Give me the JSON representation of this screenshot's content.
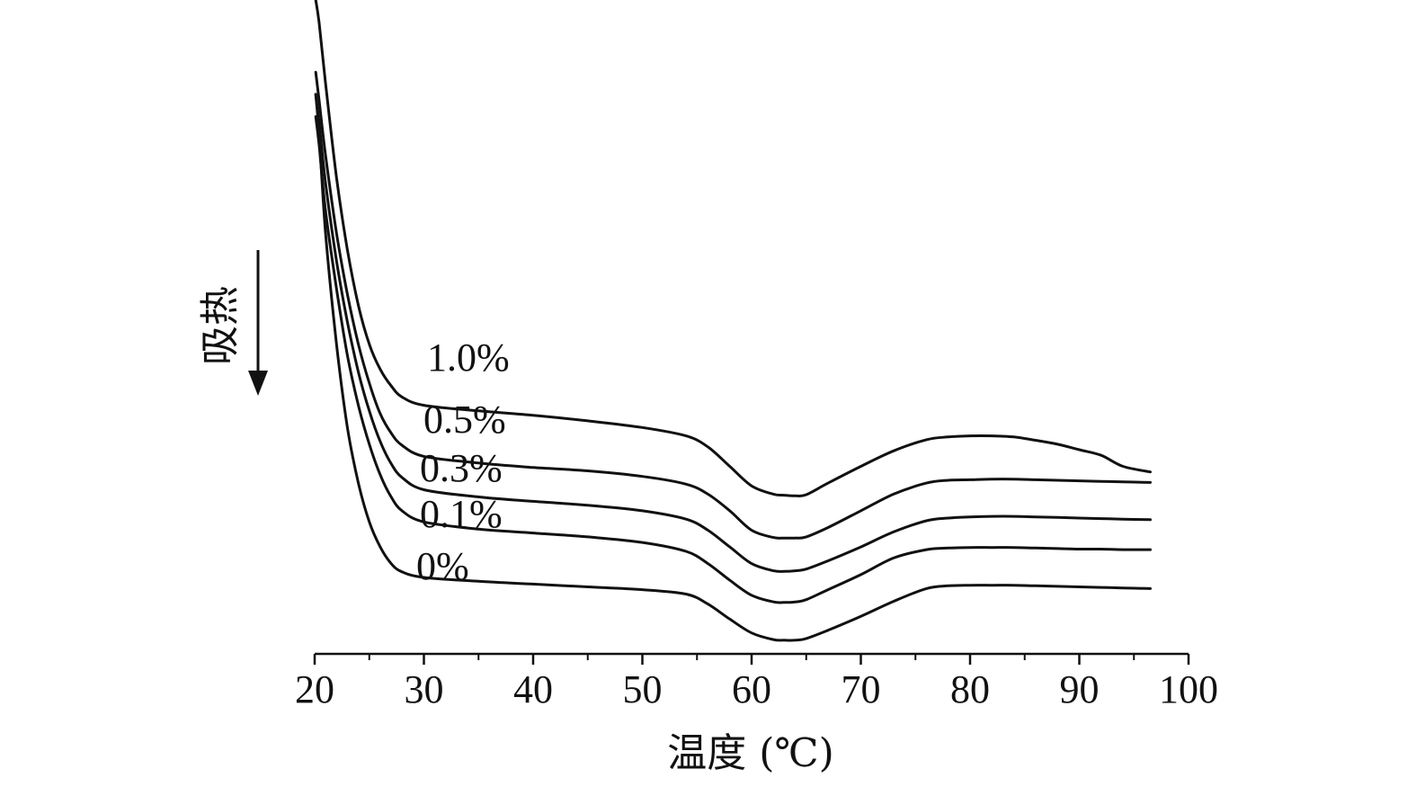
{
  "chart_data": {
    "type": "line",
    "title": "",
    "xlabel": "温度 (℃)",
    "ylabel": "吸热",
    "xlim": [
      20,
      100
    ],
    "x_ticks": [
      20,
      30,
      40,
      50,
      60,
      70,
      80,
      90,
      100
    ],
    "y_ticks": [],
    "grid": false,
    "legend": "none",
    "y_axis_shown": false,
    "arrow_direction": "down",
    "series": [
      {
        "name": "1.0%",
        "x": [
          20.1,
          20.4,
          21,
          22,
          23,
          24,
          25,
          26,
          27,
          28,
          30,
          35,
          40,
          45,
          50,
          54,
          56,
          58,
          60,
          62,
          63,
          64,
          65,
          67,
          70,
          73,
          76,
          78,
          80,
          82,
          84,
          86,
          88,
          90,
          92,
          94,
          96.5
        ],
        "y": [
          10.0,
          9.6,
          8.5,
          6.8,
          5.5,
          4.5,
          3.8,
          3.35,
          3.05,
          2.85,
          2.7,
          2.6,
          2.52,
          2.42,
          2.3,
          2.15,
          1.95,
          1.6,
          1.25,
          1.1,
          1.08,
          1.07,
          1.09,
          1.3,
          1.6,
          1.88,
          2.08,
          2.13,
          2.15,
          2.15,
          2.13,
          2.07,
          2.0,
          1.9,
          1.8,
          1.6,
          1.5
        ]
      },
      {
        "name": "0.5%",
        "x": [
          20.1,
          20.4,
          21,
          22,
          23,
          24,
          25,
          26,
          27,
          28,
          30,
          35,
          40,
          45,
          50,
          54,
          56,
          58,
          60,
          62,
          63,
          64,
          65,
          67,
          70,
          73,
          76,
          78,
          80,
          82,
          84,
          86,
          88,
          90,
          92,
          94,
          96.5
        ],
        "y": [
          8.7,
          8.2,
          7.2,
          5.8,
          4.7,
          3.8,
          3.1,
          2.55,
          2.2,
          1.98,
          1.78,
          1.66,
          1.58,
          1.52,
          1.42,
          1.28,
          1.1,
          0.8,
          0.45,
          0.32,
          0.31,
          0.31,
          0.33,
          0.5,
          0.8,
          1.1,
          1.3,
          1.35,
          1.36,
          1.37,
          1.37,
          1.36,
          1.35,
          1.34,
          1.33,
          1.32,
          1.31
        ]
      },
      {
        "name": "0.3%",
        "x": [
          20.1,
          20.4,
          21,
          22,
          23,
          24,
          25,
          26,
          27,
          28,
          30,
          35,
          40,
          45,
          50,
          54,
          56,
          58,
          60,
          62,
          63,
          64,
          65,
          67,
          70,
          73,
          76,
          78,
          80,
          82,
          84,
          86,
          88,
          90,
          92,
          94,
          96.5
        ],
        "y": [
          8.3,
          7.8,
          6.7,
          5.3,
          4.2,
          3.3,
          2.6,
          2.05,
          1.65,
          1.4,
          1.18,
          1.05,
          0.97,
          0.9,
          0.8,
          0.65,
          0.45,
          0.15,
          -0.15,
          -0.28,
          -0.29,
          -0.28,
          -0.25,
          -0.1,
          0.15,
          0.42,
          0.62,
          0.67,
          0.69,
          0.7,
          0.7,
          0.69,
          0.68,
          0.67,
          0.66,
          0.65,
          0.64
        ]
      },
      {
        "name": "0.1%",
        "x": [
          20.1,
          20.4,
          21,
          22,
          23,
          24,
          25,
          26,
          27,
          28,
          30,
          35,
          40,
          45,
          50,
          54,
          56,
          58,
          60,
          62,
          63,
          64,
          65,
          67,
          70,
          73,
          76,
          78,
          80,
          82,
          84,
          86,
          88,
          90,
          92,
          94,
          96.5
        ],
        "y": [
          7.9,
          7.4,
          6.2,
          4.8,
          3.6,
          2.7,
          2.0,
          1.45,
          1.05,
          0.8,
          0.6,
          0.47,
          0.4,
          0.33,
          0.23,
          0.07,
          -0.15,
          -0.45,
          -0.72,
          -0.84,
          -0.85,
          -0.84,
          -0.8,
          -0.62,
          -0.35,
          -0.05,
          0.1,
          0.13,
          0.14,
          0.14,
          0.14,
          0.13,
          0.12,
          0.11,
          0.11,
          0.1,
          0.1
        ]
      },
      {
        "name": "0%",
        "x": [
          20.1,
          20.4,
          21,
          22,
          23,
          24,
          25,
          26,
          27,
          28,
          30,
          35,
          40,
          45,
          50,
          54,
          56,
          58,
          60,
          62,
          63,
          64,
          65,
          67,
          70,
          73,
          76,
          78,
          80,
          82,
          84,
          86,
          88,
          90,
          92,
          94,
          96.5
        ],
        "y": [
          8.3,
          7.6,
          5.8,
          3.8,
          2.3,
          1.3,
          0.6,
          0.15,
          -0.15,
          -0.3,
          -0.4,
          -0.47,
          -0.52,
          -0.57,
          -0.62,
          -0.7,
          -0.88,
          -1.15,
          -1.4,
          -1.52,
          -1.53,
          -1.53,
          -1.5,
          -1.35,
          -1.1,
          -0.83,
          -0.6,
          -0.55,
          -0.54,
          -0.54,
          -0.54,
          -0.55,
          -0.56,
          -0.57,
          -0.58,
          -0.59,
          -0.6
        ]
      }
    ]
  }
}
